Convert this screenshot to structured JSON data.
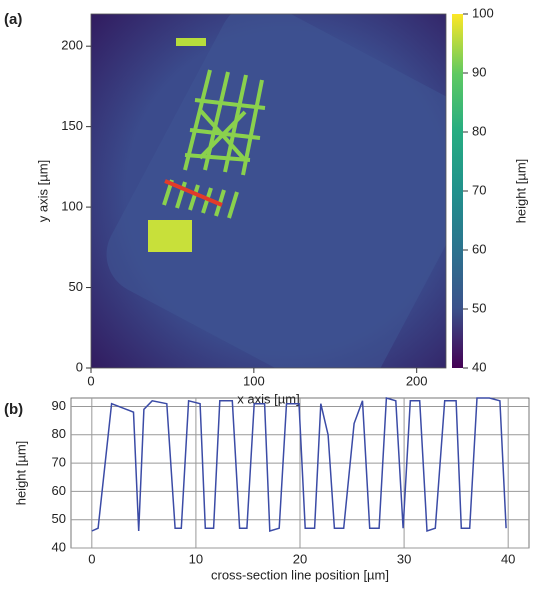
{
  "chart_data": [
    {
      "type": "heatmap",
      "panel_label": "(a)",
      "x_label": "x axis [µm]",
      "y_label": "y axis [µm]",
      "xlim": [
        0,
        218
      ],
      "ylim": [
        0,
        220
      ],
      "xticks": [
        0,
        100,
        200
      ],
      "yticks": [
        0,
        50,
        100,
        150,
        200
      ],
      "colorbar": {
        "label": "height [µm]",
        "lim": [
          40,
          100
        ],
        "ticks": [
          40,
          50,
          60,
          70,
          80,
          90,
          100
        ],
        "colormap": "viridis"
      }
    },
    {
      "type": "line",
      "panel_label": "(b)",
      "x_label": "cross-section line position [µm]",
      "y_label": "height [µm]",
      "xlim": [
        -2,
        42
      ],
      "ylim": [
        40,
        93
      ],
      "xticks": [
        0,
        10,
        20,
        30,
        40
      ],
      "yticks": [
        40,
        50,
        60,
        70,
        80,
        90
      ],
      "grid": true,
      "x": [
        0,
        0.6,
        1.9,
        3.3,
        4.0,
        4.5,
        5.0,
        5.8,
        7.2,
        8.0,
        8.6,
        9.3,
        10.4,
        10.9,
        11.7,
        12.3,
        13.5,
        14.2,
        14.9,
        15.6,
        16.6,
        17.1,
        18.0,
        18.7,
        19.9,
        20.5,
        21.4,
        22.0,
        22.7,
        23.3,
        24.2,
        25.2,
        26.0,
        26.7,
        27.6,
        28.3,
        29.2,
        29.9,
        30.6,
        31.5,
        32.2,
        33.0,
        33.9,
        35.0,
        35.5,
        36.3,
        37.0,
        38.2,
        39.2,
        39.8
      ],
      "series": [
        {
          "color": "#3b4ba6",
          "values": [
            46,
            47,
            91,
            89,
            88,
            46,
            89,
            92,
            91,
            47,
            47,
            92,
            91,
            47,
            47,
            92,
            92,
            47,
            47,
            91,
            91,
            46,
            47,
            91,
            91,
            47,
            47,
            91,
            80,
            47,
            47,
            84,
            92,
            47,
            47,
            93,
            92,
            47,
            92,
            92,
            46,
            47,
            92,
            92,
            47,
            47,
            93,
            93,
            92,
            47
          ]
        }
      ]
    }
  ]
}
